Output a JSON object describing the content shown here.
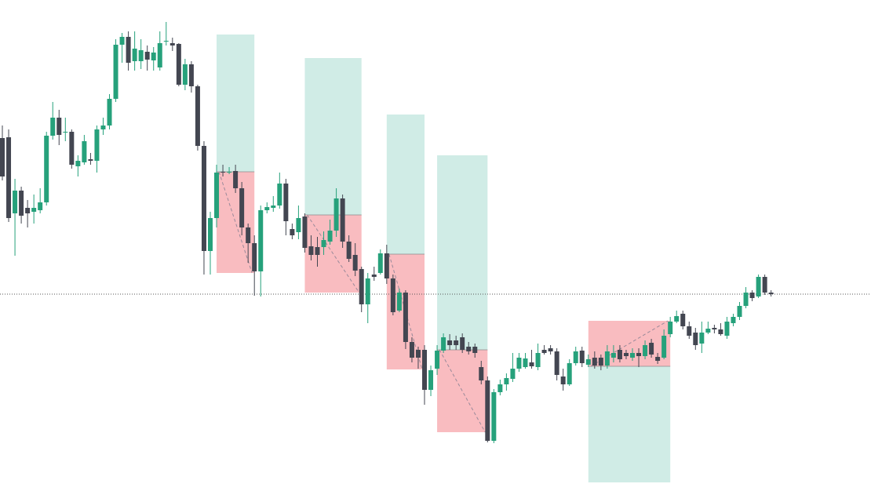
{
  "chart_data": {
    "type": "candlestick",
    "ylim": [
      0,
      640
    ],
    "up_color": "#26a17b",
    "down_color": "#434651",
    "price_line": 265,
    "price_line_color": "#555555",
    "ohlc": [
      [
        464,
        480,
        410,
        415
      ],
      [
        465,
        475,
        357,
        362
      ],
      [
        368,
        412,
        314,
        397
      ],
      [
        397,
        402,
        355,
        365
      ],
      [
        375,
        385,
        350,
        368
      ],
      [
        370,
        392,
        355,
        375
      ],
      [
        372,
        400,
        368,
        382
      ],
      [
        382,
        472,
        378,
        467
      ],
      [
        467,
        510,
        462,
        490
      ],
      [
        490,
        500,
        455,
        468
      ],
      [
        472,
        490,
        460,
        472
      ],
      [
        472,
        475,
        425,
        430
      ],
      [
        428,
        442,
        415,
        435
      ],
      [
        433,
        468,
        430,
        460
      ],
      [
        437,
        445,
        430,
        435
      ],
      [
        435,
        480,
        420,
        475
      ],
      [
        475,
        490,
        468,
        480
      ],
      [
        480,
        520,
        475,
        514
      ],
      [
        514,
        590,
        510,
        583
      ],
      [
        583,
        598,
        560,
        593
      ],
      [
        593,
        600,
        550,
        560
      ],
      [
        562,
        600,
        550,
        578
      ],
      [
        562,
        590,
        552,
        576
      ],
      [
        574,
        582,
        550,
        564
      ],
      [
        563,
        580,
        550,
        573
      ],
      [
        554,
        600,
        550,
        585
      ],
      [
        587,
        612,
        582,
        588
      ],
      [
        585,
        592,
        575,
        582
      ],
      [
        584,
        585,
        530,
        532
      ],
      [
        532,
        565,
        525,
        558
      ],
      [
        558,
        562,
        522,
        530
      ],
      [
        530,
        532,
        448,
        454
      ],
      [
        454,
        460,
        290,
        320
      ],
      [
        320,
        370,
        290,
        362
      ],
      [
        362,
        430,
        350,
        420
      ],
      [
        421,
        430,
        415,
        420
      ],
      [
        420,
        427,
        418,
        421
      ],
      [
        422,
        430,
        394,
        400
      ],
      [
        400,
        408,
        340,
        350
      ],
      [
        350,
        355,
        305,
        330
      ],
      [
        330,
        340,
        263,
        294
      ],
      [
        294,
        378,
        262,
        372
      ],
      [
        372,
        382,
        368,
        376
      ],
      [
        375,
        390,
        370,
        378
      ],
      [
        378,
        420,
        374,
        406
      ],
      [
        406,
        412,
        340,
        358
      ],
      [
        348,
        355,
        335,
        340
      ],
      [
        344,
        378,
        335,
        362
      ],
      [
        364,
        368,
        318,
        324
      ],
      [
        326,
        340,
        308,
        315
      ],
      [
        325,
        338,
        300,
        315
      ],
      [
        325,
        345,
        315,
        334
      ],
      [
        332,
        360,
        328,
        346
      ],
      [
        346,
        400,
        338,
        387
      ],
      [
        387,
        392,
        324,
        332
      ],
      [
        332,
        340,
        306,
        310
      ],
      [
        315,
        330,
        288,
        295
      ],
      [
        297,
        300,
        242,
        252
      ],
      [
        252,
        292,
        228,
        285
      ],
      [
        290,
        300,
        282,
        287
      ],
      [
        292,
        322,
        290,
        317
      ],
      [
        317,
        328,
        278,
        285
      ],
      [
        285,
        290,
        238,
        242
      ],
      [
        244,
        272,
        242,
        267
      ],
      [
        267,
        270,
        195,
        204
      ],
      [
        204,
        210,
        178,
        184
      ],
      [
        194,
        198,
        170,
        184
      ],
      [
        194,
        200,
        124,
        143
      ],
      [
        143,
        174,
        135,
        168
      ],
      [
        170,
        200,
        162,
        193
      ],
      [
        193,
        215,
        190,
        210
      ],
      [
        206,
        214,
        194,
        200
      ],
      [
        206,
        212,
        194,
        200
      ],
      [
        210,
        215,
        190,
        194
      ],
      [
        198,
        204,
        188,
        192
      ],
      [
        198,
        202,
        184,
        190
      ],
      [
        172,
        180,
        150,
        155
      ],
      [
        155,
        160,
        76,
        78
      ],
      [
        78,
        144,
        75,
        140
      ],
      [
        140,
        156,
        136,
        150
      ],
      [
        150,
        164,
        142,
        158
      ],
      [
        157,
        190,
        153,
        170
      ],
      [
        170,
        190,
        166,
        184
      ],
      [
        172,
        190,
        170,
        183
      ],
      [
        178,
        194,
        170,
        173
      ],
      [
        172,
        202,
        168,
        190
      ],
      [
        194,
        200,
        188,
        190
      ],
      [
        196,
        200,
        188,
        192
      ],
      [
        192,
        196,
        155,
        162
      ],
      [
        160,
        170,
        142,
        150
      ],
      [
        150,
        182,
        148,
        177
      ],
      [
        177,
        198,
        174,
        192
      ],
      [
        193,
        198,
        172,
        177
      ],
      [
        175,
        188,
        172,
        182
      ],
      [
        184,
        192,
        170,
        174
      ],
      [
        184,
        188,
        168,
        174
      ],
      [
        174,
        200,
        170,
        192
      ],
      [
        184,
        200,
        178,
        190
      ],
      [
        194,
        200,
        178,
        182
      ],
      [
        190,
        194,
        182,
        186
      ],
      [
        184,
        196,
        180,
        190
      ],
      [
        190,
        196,
        172,
        186
      ],
      [
        186,
        206,
        182,
        200
      ],
      [
        203,
        208,
        184,
        188
      ],
      [
        185,
        190,
        176,
        180
      ],
      [
        184,
        220,
        182,
        212
      ],
      [
        214,
        236,
        210,
        230
      ],
      [
        230,
        244,
        228,
        237
      ],
      [
        240,
        244,
        220,
        224
      ],
      [
        224,
        230,
        208,
        212
      ],
      [
        216,
        222,
        194,
        200
      ],
      [
        202,
        230,
        190,
        216
      ],
      [
        216,
        230,
        214,
        221
      ],
      [
        222,
        226,
        215,
        220
      ],
      [
        220,
        228,
        212,
        214
      ],
      [
        212,
        236,
        208,
        230
      ],
      [
        228,
        240,
        224,
        236
      ],
      [
        236,
        255,
        232,
        250
      ],
      [
        250,
        274,
        247,
        267
      ],
      [
        267,
        270,
        256,
        260
      ],
      [
        262,
        290,
        260,
        287
      ],
      [
        287,
        290,
        264,
        267
      ],
      [
        267,
        270,
        262,
        265
      ]
    ],
    "positions": [
      {
        "start": 34,
        "end": 40,
        "entry": 421,
        "target": 596,
        "stop": 292
      },
      {
        "start": 48,
        "end": 57,
        "entry": 366,
        "target": 566,
        "stop": 267
      },
      {
        "start": 61,
        "end": 67,
        "entry": 316,
        "target": 494,
        "stop": 169
      },
      {
        "start": 69,
        "end": 77,
        "entry": 194,
        "target": 442,
        "stop": 89
      },
      {
        "start": 93,
        "end": 106,
        "entry": 173,
        "target": 25,
        "stop": 231
      }
    ],
    "target_color": "#d0ece6",
    "stop_color": "#f9bcc0"
  }
}
